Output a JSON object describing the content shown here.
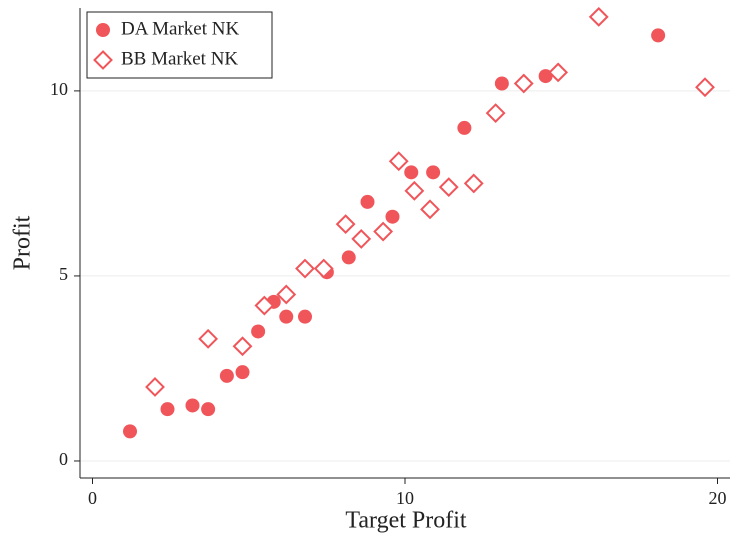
{
  "chart_data": {
    "type": "scatter",
    "x_label": "Target Profit",
    "y_label": "Profit",
    "xlim": [
      -0.4,
      20.4
    ],
    "ylim": [
      -0.46,
      12.24
    ],
    "xticks": [
      0,
      10,
      20
    ],
    "yticks": [
      0,
      5,
      10
    ],
    "grid": true,
    "legend": "upper left",
    "series": [
      {
        "name": "DA Market NK",
        "color": "#f0555a",
        "marker": "circle",
        "x": [
          1.2,
          2.4,
          3.2,
          3.7,
          4.3,
          4.8,
          5.3,
          5.8,
          6.2,
          6.8,
          7.5,
          8.2,
          8.8,
          9.6,
          10.2,
          10.9,
          11.9,
          13.1,
          14.5,
          18.1
        ],
        "values": [
          0.8,
          1.4,
          1.5,
          1.4,
          2.3,
          2.4,
          3.5,
          4.3,
          3.9,
          3.9,
          5.1,
          5.5,
          7.0,
          6.6,
          7.8,
          7.8,
          9.0,
          10.2,
          10.4,
          11.5
        ]
      },
      {
        "name": "BB Market NK",
        "color": "#f0555a",
        "marker": "diamond",
        "x": [
          2.0,
          3.7,
          4.8,
          5.5,
          6.2,
          6.8,
          7.4,
          8.1,
          8.6,
          9.3,
          9.8,
          10.3,
          10.8,
          11.4,
          12.2,
          12.9,
          13.8,
          14.9,
          16.2,
          19.6
        ],
        "values": [
          2.0,
          3.3,
          3.1,
          4.2,
          4.5,
          5.2,
          5.2,
          6.4,
          6.0,
          6.2,
          8.1,
          7.3,
          6.8,
          7.4,
          7.5,
          9.4,
          10.2,
          10.5,
          12.0,
          10.1
        ]
      }
    ]
  }
}
